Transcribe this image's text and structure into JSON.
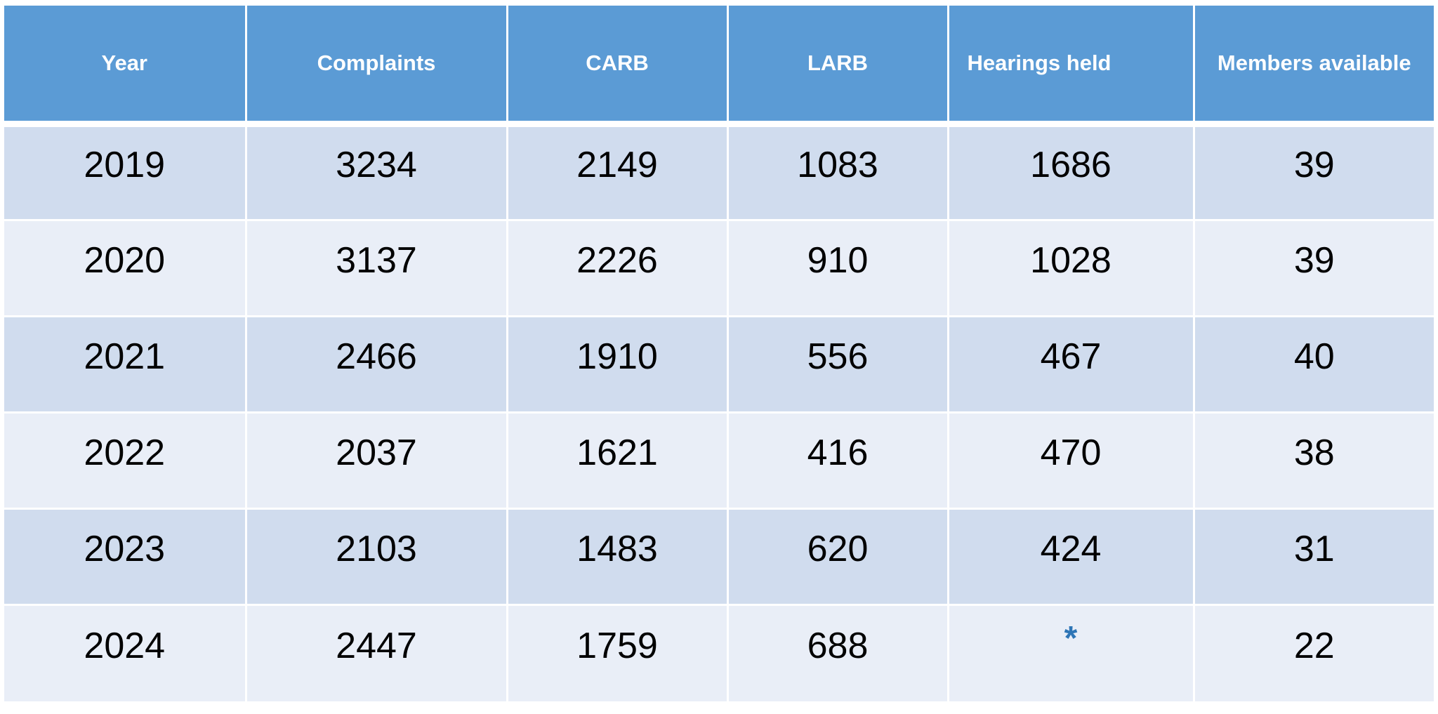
{
  "table": {
    "headers": [
      "Year",
      "Complaints",
      "CARB",
      "LARB",
      "Hearings held",
      "Members available"
    ],
    "rows": [
      [
        "2019",
        "3234",
        "2149",
        "1083",
        "1686",
        "39"
      ],
      [
        "2020",
        "3137",
        "2226",
        "910",
        "1028",
        "39"
      ],
      [
        "2021",
        "2466",
        "1910",
        "556",
        "467",
        "40"
      ],
      [
        "2022",
        "2037",
        "1621",
        "416",
        "470",
        "38"
      ],
      [
        "2023",
        "2103",
        "1483",
        "620",
        "424",
        "31"
      ],
      [
        "2024",
        "2447",
        "1759",
        "688",
        "*",
        "22"
      ]
    ]
  },
  "colors": {
    "header_bg": "#5b9bd5",
    "row_odd_bg": "#d0dcee",
    "row_even_bg": "#e9eef7",
    "asterisk": "#2e75b6"
  }
}
